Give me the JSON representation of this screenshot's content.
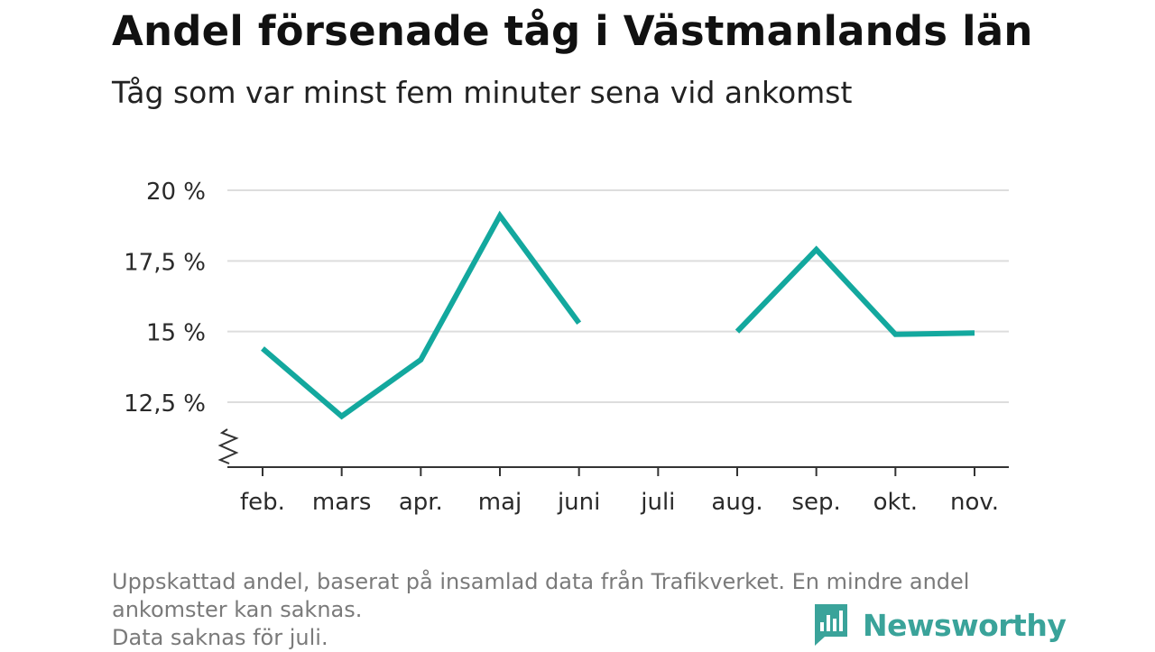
{
  "title": "Andel försenade tåg i Västmanlands län",
  "subtitle": "Tåg som var minst fem minuter sena vid ankomst",
  "footnote": {
    "line1": "Uppskattad andel, baserat på insamlad data från Trafikverket. En mindre andel",
    "line2": "ankomster kan saknas.",
    "line3": "Data saknas för juli."
  },
  "brand": {
    "name": "Newsworthy",
    "color": "#3aa39a"
  },
  "chart_data": {
    "type": "line",
    "categories": [
      "feb.",
      "mars",
      "apr.",
      "maj",
      "juni",
      "juli",
      "aug.",
      "sep.",
      "okt.",
      "nov."
    ],
    "series": [
      {
        "values": [
          14.4,
          12.0,
          14.0,
          19.1,
          15.3,
          null,
          15.0,
          17.9,
          14.9,
          14.95
        ],
        "color": "#13a89e"
      }
    ],
    "y_ticks": [
      12.5,
      15,
      17.5,
      20
    ],
    "y_tick_labels": [
      "12,5 %",
      "15 %",
      "17,5 %",
      "20 %"
    ],
    "ylim": [
      10.2,
      20
    ],
    "y_axis_break": true,
    "grid": true,
    "legend": false
  }
}
